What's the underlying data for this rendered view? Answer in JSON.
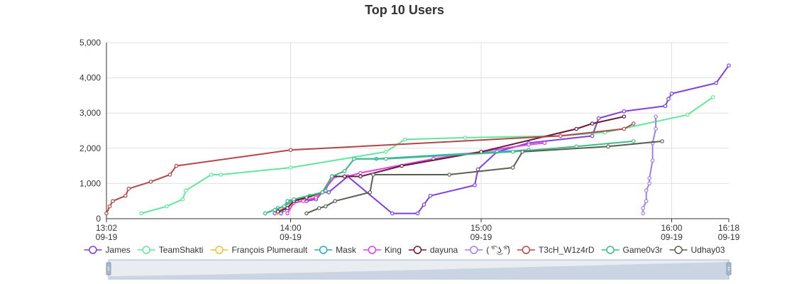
{
  "chart_data": {
    "type": "line",
    "title": "Top 10 Users",
    "x_axis": {
      "type": "time",
      "min": "09-19 13:02",
      "max": "09-19 16:18",
      "ticks": [
        {
          "time": "13:02",
          "date": "09-19"
        },
        {
          "time": "14:00",
          "date": "09-19"
        },
        {
          "time": "15:00",
          "date": "09-19"
        },
        {
          "time": "16:00",
          "date": "09-19"
        },
        {
          "time": "16:18",
          "date": "09-19"
        }
      ],
      "grid": true
    },
    "y_axis": {
      "min": 0,
      "max": 5000,
      "ticks": [
        "0",
        "1,000",
        "2,000",
        "3,000",
        "4,000",
        "5,000"
      ],
      "grid": true
    },
    "legend_placement": "bottom",
    "series": [
      {
        "name": "James",
        "color": "#7f3fe0",
        "points": [
          [
            "13:55",
            150
          ],
          [
            "13:57",
            150
          ],
          [
            "13:58",
            250
          ],
          [
            "13:59",
            350
          ],
          [
            "14:00",
            500
          ],
          [
            "14:02",
            500
          ],
          [
            "14:03",
            550
          ],
          [
            "14:05",
            500
          ],
          [
            "14:08",
            550
          ],
          [
            "14:10",
            750
          ],
          [
            "14:12",
            750
          ],
          [
            "14:18",
            1200
          ],
          [
            "14:32",
            150
          ],
          [
            "14:40",
            150
          ],
          [
            "14:42",
            400
          ],
          [
            "14:44",
            650
          ],
          [
            "14:58",
            950
          ],
          [
            "14:59",
            1400
          ],
          [
            "15:05",
            1900
          ],
          [
            "15:15",
            2150
          ],
          [
            "15:35",
            2350
          ],
          [
            "15:37",
            2850
          ],
          [
            "15:45",
            3050
          ],
          [
            "15:58",
            3200
          ],
          [
            "15:59",
            3400
          ],
          [
            "16:00",
            3550
          ],
          [
            "16:14",
            3850
          ],
          [
            "16:18",
            4350
          ]
        ]
      },
      {
        "name": "TeamShakti",
        "color": "#5fe89a",
        "points": [
          [
            "13:13",
            150
          ],
          [
            "13:21",
            350
          ],
          [
            "13:26",
            550
          ],
          [
            "13:27",
            800
          ],
          [
            "13:35",
            1250
          ],
          [
            "13:38",
            1250
          ],
          [
            "14:00",
            1450
          ],
          [
            "14:30",
            1900
          ],
          [
            "14:36",
            2250
          ],
          [
            "14:55",
            2300
          ],
          [
            "15:25",
            2350
          ],
          [
            "15:39",
            2450
          ],
          [
            "16:05",
            2950
          ],
          [
            "16:13",
            3450
          ]
        ]
      },
      {
        "name": "François Plumerault",
        "color": "#e8c33a",
        "points": [
          [
            "13:56",
            150
          ],
          [
            "13:58",
            350
          ],
          [
            "13:59",
            400
          ],
          [
            "14:00",
            500
          ],
          [
            "14:03",
            550
          ],
          [
            "14:06",
            600
          ],
          [
            "14:10",
            750
          ]
        ]
      },
      {
        "name": "Mask",
        "color": "#2aa9c9",
        "points": [
          [
            "13:52",
            150
          ],
          [
            "13:56",
            300
          ],
          [
            "13:58",
            350
          ],
          [
            "13:59",
            500
          ],
          [
            "14:06",
            650
          ],
          [
            "14:10",
            750
          ],
          [
            "14:11",
            800
          ],
          [
            "14:13",
            1200
          ],
          [
            "14:17",
            1350
          ],
          [
            "14:20",
            1700
          ],
          [
            "14:27",
            1700
          ],
          [
            "15:05",
            1900
          ],
          [
            "15:15",
            1950
          ]
        ]
      },
      {
        "name": "King",
        "color": "#e040e0",
        "points": [
          [
            "13:59",
            150
          ],
          [
            "14:01",
            450
          ],
          [
            "14:04",
            500
          ],
          [
            "14:08",
            600
          ],
          [
            "14:10",
            750
          ],
          [
            "14:14",
            1200
          ],
          [
            "14:18",
            1200
          ],
          [
            "14:22",
            1300
          ],
          [
            "14:45",
            1700
          ],
          [
            "15:15",
            2100
          ],
          [
            "15:20",
            2150
          ]
        ]
      },
      {
        "name": "dayuna",
        "color": "#6a1838",
        "points": [
          [
            "13:56",
            200
          ],
          [
            "13:59",
            300
          ],
          [
            "14:01",
            500
          ],
          [
            "14:05",
            600
          ],
          [
            "14:10",
            750
          ],
          [
            "14:13",
            1200
          ],
          [
            "14:17",
            1200
          ],
          [
            "14:22",
            1200
          ],
          [
            "14:35",
            1500
          ],
          [
            "15:00",
            1900
          ],
          [
            "15:30",
            2550
          ],
          [
            "15:35",
            2700
          ],
          [
            "15:45",
            2900
          ]
        ]
      },
      {
        "name": "( ͡° ͜ʖ ͡°)",
        "color": "#9d7fef",
        "points": [
          [
            "15:51",
            150
          ],
          [
            "15:51",
            300
          ],
          [
            "15:52",
            500
          ],
          [
            "15:52",
            800
          ],
          [
            "15:53",
            1000
          ],
          [
            "15:53",
            1150
          ],
          [
            "15:54",
            1650
          ],
          [
            "15:54",
            2150
          ],
          [
            "15:55",
            2550
          ],
          [
            "15:55",
            2900
          ]
        ]
      },
      {
        "name": "T3cH_W1z4rD",
        "color": "#b4464a",
        "points": [
          [
            "13:02",
            150
          ],
          [
            "13:03",
            350
          ],
          [
            "13:04",
            500
          ],
          [
            "13:08",
            650
          ],
          [
            "13:09",
            850
          ],
          [
            "13:16",
            1050
          ],
          [
            "13:22",
            1250
          ],
          [
            "13:24",
            1500
          ],
          [
            "14:00",
            1950
          ],
          [
            "15:25",
            2350
          ],
          [
            "15:45",
            2550
          ],
          [
            "15:48",
            2700
          ]
        ]
      },
      {
        "name": "Game0v3r",
        "color": "#3dbd86",
        "points": [
          [
            "13:52",
            150
          ],
          [
            "13:55",
            250
          ],
          [
            "13:58",
            350
          ],
          [
            "14:01",
            550
          ],
          [
            "14:10",
            750
          ],
          [
            "14:13",
            1200
          ],
          [
            "14:17",
            1350
          ],
          [
            "14:20",
            1700
          ],
          [
            "14:30",
            1700
          ],
          [
            "15:10",
            1900
          ],
          [
            "15:30",
            2050
          ],
          [
            "15:48",
            2200
          ]
        ]
      },
      {
        "name": "Udhay03",
        "color": "#5b6055",
        "points": [
          [
            "14:05",
            150
          ],
          [
            "14:09",
            300
          ],
          [
            "14:11",
            350
          ],
          [
            "14:14",
            500
          ],
          [
            "14:25",
            750
          ],
          [
            "14:26",
            1250
          ],
          [
            "14:50",
            1250
          ],
          [
            "15:10",
            1450
          ],
          [
            "15:13",
            1900
          ],
          [
            "15:40",
            2050
          ],
          [
            "15:57",
            2200
          ]
        ]
      }
    ],
    "data_zoom": {
      "start": "09-19 13:02",
      "end": "09-19 16:18"
    }
  }
}
